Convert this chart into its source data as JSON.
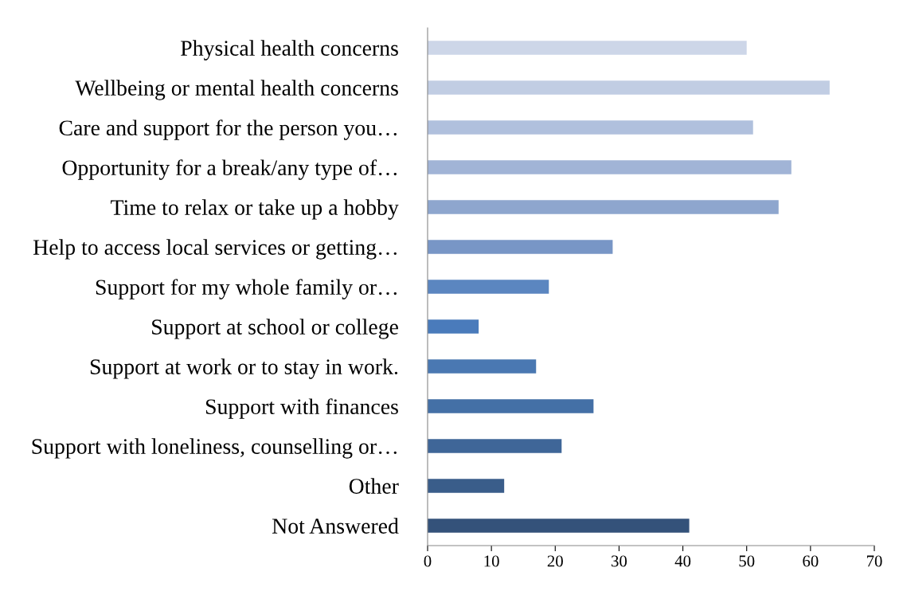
{
  "chart_data": {
    "type": "bar",
    "orientation": "horizontal",
    "categories": [
      "Physical health concerns",
      "Wellbeing or mental health concerns",
      "Care and support for the person you…",
      "Opportunity for a break/any type of…",
      "Time to relax or take up a hobby",
      "Help to access local services or getting…",
      "Support for my whole family or…",
      "Support at school or college",
      "Support at work or to stay in work.",
      "Support with finances",
      "Support with loneliness, counselling or…",
      "Other",
      "Not Answered"
    ],
    "values": [
      50,
      63,
      51,
      57,
      55,
      29,
      19,
      8,
      17,
      26,
      21,
      12,
      41
    ],
    "colors": [
      "#cdd6e8",
      "#c1cde3",
      "#b0c0dd",
      "#a1b4d6",
      "#8ea6ce",
      "#7896c6",
      "#5b86c0",
      "#4a7bbb",
      "#4a78b2",
      "#4470a6",
      "#3f6698",
      "#3a5d8a",
      "#34527a"
    ],
    "xlim": [
      0,
      70
    ],
    "xticks": [
      0,
      10,
      20,
      30,
      40,
      50,
      60,
      70
    ],
    "grid": false,
    "legend": false
  }
}
